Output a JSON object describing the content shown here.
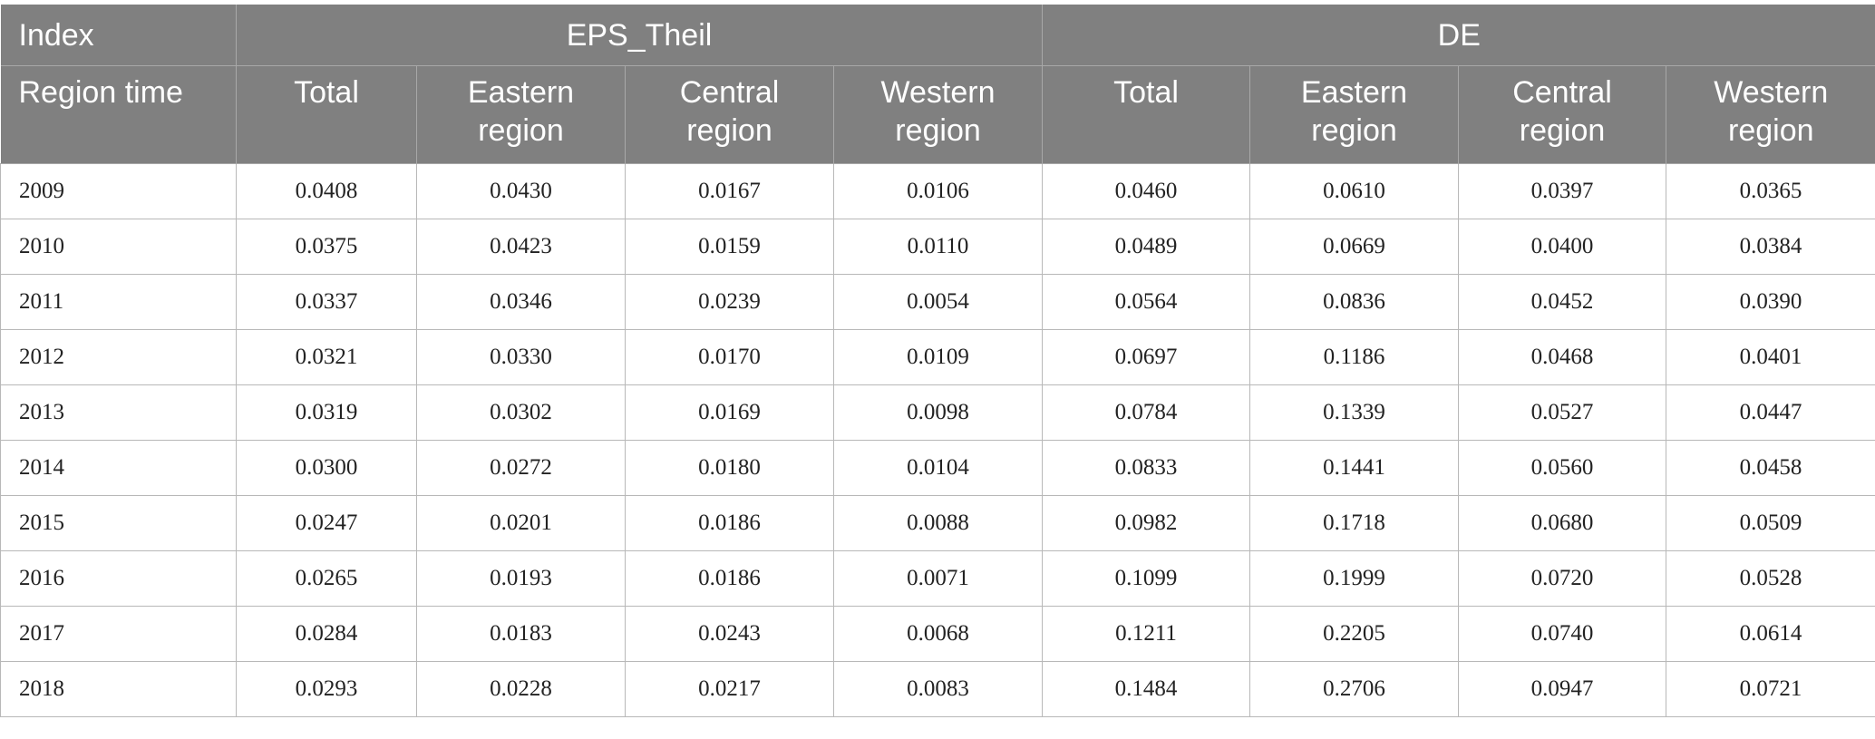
{
  "table": {
    "header": [
      "Index",
      "EPS_Theil",
      "DE"
    ],
    "subheader": [
      "Region time",
      "Total",
      "Eastern region",
      "Central region",
      "Western region",
      "Total",
      "Eastern region",
      "Central region",
      "Western region"
    ],
    "rows": [
      [
        "2009",
        "0.0408",
        "0.0430",
        "0.0167",
        "0.0106",
        "0.0460",
        "0.0610",
        "0.0397",
        "0.0365"
      ],
      [
        "2010",
        "0.0375",
        "0.0423",
        "0.0159",
        "0.0110",
        "0.0489",
        "0.0669",
        "0.0400",
        "0.0384"
      ],
      [
        "2011",
        "0.0337",
        "0.0346",
        "0.0239",
        "0.0054",
        "0.0564",
        "0.0836",
        "0.0452",
        "0.0390"
      ],
      [
        "2012",
        "0.0321",
        "0.0330",
        "0.0170",
        "0.0109",
        "0.0697",
        "0.1186",
        "0.0468",
        "0.0401"
      ],
      [
        "2013",
        "0.0319",
        "0.0302",
        "0.0169",
        "0.0098",
        "0.0784",
        "0.1339",
        "0.0527",
        "0.0447"
      ],
      [
        "2014",
        "0.0300",
        "0.0272",
        "0.0180",
        "0.0104",
        "0.0833",
        "0.1441",
        "0.0560",
        "0.0458"
      ],
      [
        "2015",
        "0.0247",
        "0.0201",
        "0.0186",
        "0.0088",
        "0.0982",
        "0.1718",
        "0.0680",
        "0.0509"
      ],
      [
        "2016",
        "0.0265",
        "0.0193",
        "0.0186",
        "0.0071",
        "0.1099",
        "0.1999",
        "0.0720",
        "0.0528"
      ],
      [
        "2017",
        "0.0284",
        "0.0183",
        "0.0243",
        "0.0068",
        "0.1211",
        "0.2205",
        "0.0740",
        "0.0614"
      ],
      [
        "2018",
        "0.0293",
        "0.0228",
        "0.0217",
        "0.0083",
        "0.1484",
        "0.2706",
        "0.0947",
        "0.0721"
      ]
    ]
  }
}
